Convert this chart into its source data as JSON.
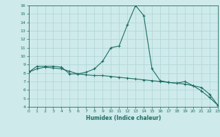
{
  "xlabel": "Humidex (Indice chaleur)",
  "ylabel": "",
  "bg_color": "#ceeaea",
  "line_color": "#1a6b60",
  "grid_color": "#aed4d4",
  "xlim": [
    0,
    23
  ],
  "ylim": [
    4,
    16
  ],
  "xticks": [
    0,
    1,
    2,
    3,
    4,
    5,
    6,
    7,
    8,
    9,
    10,
    11,
    12,
    13,
    14,
    15,
    16,
    17,
    18,
    19,
    20,
    21,
    22,
    23
  ],
  "yticks": [
    4,
    5,
    6,
    7,
    8,
    9,
    10,
    11,
    12,
    13,
    14,
    15,
    16
  ],
  "line1_x": [
    0,
    1,
    2,
    3,
    4,
    5,
    6,
    7,
    8,
    9,
    10,
    11,
    12,
    13,
    14,
    15,
    16,
    17,
    18,
    19,
    20,
    21,
    22,
    23
  ],
  "line1_y": [
    8.1,
    8.8,
    8.8,
    8.8,
    8.7,
    7.9,
    7.9,
    8.1,
    8.5,
    9.4,
    11.0,
    11.2,
    13.7,
    16.0,
    14.8,
    8.5,
    7.1,
    6.9,
    6.8,
    7.0,
    6.5,
    5.9,
    5.1,
    4.2
  ],
  "line2_x": [
    0,
    1,
    2,
    3,
    4,
    5,
    6,
    7,
    8,
    9,
    10,
    11,
    12,
    13,
    14,
    15,
    16,
    17,
    18,
    19,
    20,
    21,
    22,
    23
  ],
  "line2_y": [
    8.1,
    8.5,
    8.7,
    8.6,
    8.5,
    8.2,
    7.9,
    7.8,
    7.7,
    7.7,
    7.6,
    7.5,
    7.4,
    7.3,
    7.2,
    7.1,
    7.0,
    6.9,
    6.8,
    6.7,
    6.5,
    6.3,
    5.5,
    4.2
  ]
}
